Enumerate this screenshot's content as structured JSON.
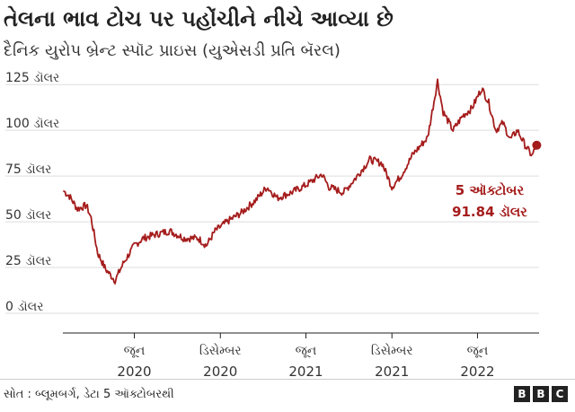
{
  "chart_data": {
    "type": "line",
    "title": "તેલના ભાવ ટોચ પર પહોંચીને નીચે આવ્યા છે",
    "subtitle": "દૈનિક યુરોપ બ્રેન્ટ સ્પૉટ પ્રાઇસ (યુએસડી પ્રતિ બૅરલ)",
    "y_ticks": [
      {
        "value": 125,
        "label": "125 ડૉલર"
      },
      {
        "value": 100,
        "label": "100 ડૉલર"
      },
      {
        "value": 75,
        "label": "75 ડૉલર"
      },
      {
        "value": 50,
        "label": "50 ડૉલર"
      },
      {
        "value": 25,
        "label": "25 ડૉલર"
      },
      {
        "value": 0,
        "label": "0 ડૉલર"
      }
    ],
    "ylim": [
      0,
      130
    ],
    "xlim": [
      "2020-01-01",
      "2022-10-10"
    ],
    "x_ticks": [
      {
        "date": "2020-06-01",
        "month": "જૂન",
        "year": "2020"
      },
      {
        "date": "2020-12-01",
        "month": "ડિસેમ્બર",
        "year": "2020"
      },
      {
        "date": "2021-06-01",
        "month": "જૂન",
        "year": "2021"
      },
      {
        "date": "2021-12-01",
        "month": "ડિસેમ્બર",
        "year": "2021"
      },
      {
        "date": "2022-06-01",
        "month": "જૂન",
        "year": "2022"
      }
    ],
    "grid": true,
    "series": [
      {
        "color": "#a51c1c",
        "points": [
          [
            "2020-01-02",
            67
          ],
          [
            "2020-01-15",
            64
          ],
          [
            "2020-02-01",
            57
          ],
          [
            "2020-02-20",
            59
          ],
          [
            "2020-03-01",
            52
          ],
          [
            "2020-03-15",
            33
          ],
          [
            "2020-04-01",
            24
          ],
          [
            "2020-04-21",
            18
          ],
          [
            "2020-05-10",
            28
          ],
          [
            "2020-06-01",
            37
          ],
          [
            "2020-06-20",
            41
          ],
          [
            "2020-07-15",
            43
          ],
          [
            "2020-08-15",
            45
          ],
          [
            "2020-09-15",
            41
          ],
          [
            "2020-10-15",
            41
          ],
          [
            "2020-11-01",
            37
          ],
          [
            "2020-11-20",
            45
          ],
          [
            "2020-12-15",
            50
          ],
          [
            "2021-01-15",
            55
          ],
          [
            "2021-02-15",
            62
          ],
          [
            "2021-03-10",
            69
          ],
          [
            "2021-04-01",
            63
          ],
          [
            "2021-05-01",
            66
          ],
          [
            "2021-06-01",
            70
          ],
          [
            "2021-07-05",
            76
          ],
          [
            "2021-07-20",
            69
          ],
          [
            "2021-08-20",
            66
          ],
          [
            "2021-09-15",
            74
          ],
          [
            "2021-10-15",
            84
          ],
          [
            "2021-11-10",
            82
          ],
          [
            "2021-12-01",
            69
          ],
          [
            "2021-12-20",
            75
          ],
          [
            "2022-01-15",
            87
          ],
          [
            "2022-02-15",
            96
          ],
          [
            "2022-03-08",
            127
          ],
          [
            "2022-03-20",
            110
          ],
          [
            "2022-04-10",
            100
          ],
          [
            "2022-05-01",
            108
          ],
          [
            "2022-05-20",
            112
          ],
          [
            "2022-06-10",
            123
          ],
          [
            "2022-06-25",
            115
          ],
          [
            "2022-07-10",
            100
          ],
          [
            "2022-07-25",
            104
          ],
          [
            "2022-08-10",
            95
          ],
          [
            "2022-08-25",
            100
          ],
          [
            "2022-09-10",
            92
          ],
          [
            "2022-09-25",
            86
          ],
          [
            "2022-10-05",
            91.84
          ]
        ]
      }
    ],
    "annotations": [
      {
        "date": "2022-10-05",
        "value": 91.84,
        "line1": "5 ઑક્ટોબર",
        "line2": "91.84 ડૉલર"
      }
    ]
  },
  "footer": {
    "source": "સોત : બ્લૂમબર્ગ, ડેટા 5 ઑક્ટોબરથી",
    "logo_letters": [
      "B",
      "B",
      "C"
    ]
  }
}
